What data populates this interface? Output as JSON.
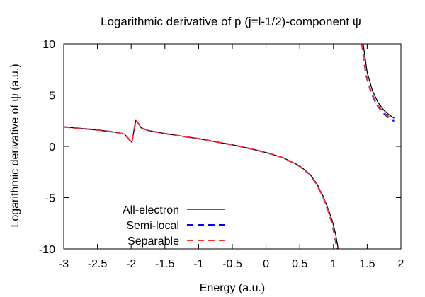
{
  "chart_data": {
    "type": "line",
    "title": "Logarithmic derivative of p (j=l-1/2)-component ψ",
    "xlabel": "Energy (a.u.)",
    "ylabel": "Logarithmic derivative of ψ (a.u.)",
    "xlim": [
      -3,
      2
    ],
    "ylim": [
      -10,
      10
    ],
    "xticks": [
      -3,
      -2.5,
      -2,
      -1.5,
      -1,
      -0.5,
      0,
      0.5,
      1,
      1.5,
      2
    ],
    "xtick_labels": [
      "-3",
      "-2.5",
      "-2",
      "-1.5",
      "-1",
      "-0.5",
      "0",
      "0.5",
      "1",
      "1.5",
      "2"
    ],
    "yticks": [
      -10,
      -5,
      0,
      5,
      10
    ],
    "ytick_labels": [
      "-10",
      "-5",
      "0",
      "5",
      "10"
    ],
    "grid": false,
    "legend_position": "bottom-left",
    "series": [
      {
        "name": "All-electron",
        "color": "#000000",
        "style": "solid",
        "segments": [
          [
            [
              -3,
              1.9
            ],
            [
              -2.75,
              1.75
            ],
            [
              -2.5,
              1.6
            ],
            [
              -2.25,
              1.4
            ],
            [
              -2.1,
              1.2
            ],
            [
              -2.02,
              0.6
            ],
            [
              -1.99,
              0.4
            ],
            [
              -1.93,
              2.6
            ],
            [
              -1.85,
              1.8
            ],
            [
              -1.75,
              1.55
            ],
            [
              -1.5,
              1.25
            ],
            [
              -1.25,
              1.0
            ],
            [
              -1.0,
              0.75
            ],
            [
              -0.75,
              0.45
            ],
            [
              -0.5,
              0.15
            ],
            [
              -0.25,
              -0.2
            ],
            [
              0.0,
              -0.6
            ],
            [
              0.25,
              -1.1
            ],
            [
              0.5,
              -1.9
            ],
            [
              0.65,
              -2.7
            ],
            [
              0.75,
              -3.6
            ],
            [
              0.85,
              -4.9
            ],
            [
              0.92,
              -6.1
            ],
            [
              0.98,
              -7.2
            ],
            [
              1.03,
              -8.5
            ],
            [
              1.07,
              -10
            ]
          ],
          [
            [
              1.44,
              10
            ],
            [
              1.5,
              7.2
            ],
            [
              1.58,
              5.4
            ],
            [
              1.66,
              4.3
            ],
            [
              1.75,
              3.5
            ],
            [
              1.82,
              3.1
            ],
            [
              1.9,
              2.75
            ]
          ]
        ]
      },
      {
        "name": "Semi-local",
        "color": "#0000ff",
        "style": "dashed",
        "segments": [
          [
            [
              -3,
              1.9
            ],
            [
              -2.75,
              1.75
            ],
            [
              -2.5,
              1.6
            ],
            [
              -2.25,
              1.4
            ],
            [
              -2.1,
              1.2
            ],
            [
              -2.02,
              0.6
            ],
            [
              -1.99,
              0.4
            ],
            [
              -1.93,
              2.6
            ],
            [
              -1.85,
              1.8
            ],
            [
              -1.75,
              1.55
            ],
            [
              -1.5,
              1.25
            ],
            [
              -1.25,
              1.0
            ],
            [
              -1.0,
              0.75
            ],
            [
              -0.75,
              0.45
            ],
            [
              -0.5,
              0.15
            ],
            [
              -0.25,
              -0.2
            ],
            [
              0.0,
              -0.6
            ],
            [
              0.25,
              -1.1
            ],
            [
              0.5,
              -1.95
            ],
            [
              0.65,
              -2.75
            ],
            [
              0.75,
              -3.7
            ],
            [
              0.85,
              -5.0
            ],
            [
              0.92,
              -6.3
            ],
            [
              0.98,
              -7.5
            ],
            [
              1.02,
              -8.8
            ],
            [
              1.05,
              -10
            ]
          ],
          [
            [
              1.42,
              10
            ],
            [
              1.48,
              7.0
            ],
            [
              1.56,
              5.2
            ],
            [
              1.64,
              4.1
            ],
            [
              1.73,
              3.3
            ],
            [
              1.81,
              2.85
            ],
            [
              1.9,
              2.45
            ]
          ]
        ]
      },
      {
        "name": "Separable",
        "color": "#ff3030",
        "style": "dashed",
        "segments": [
          [
            [
              -3,
              1.9
            ],
            [
              -2.75,
              1.75
            ],
            [
              -2.5,
              1.6
            ],
            [
              -2.25,
              1.4
            ],
            [
              -2.1,
              1.2
            ],
            [
              -2.02,
              0.6
            ],
            [
              -1.99,
              0.4
            ],
            [
              -1.93,
              2.6
            ],
            [
              -1.85,
              1.8
            ],
            [
              -1.75,
              1.55
            ],
            [
              -1.5,
              1.25
            ],
            [
              -1.25,
              1.0
            ],
            [
              -1.0,
              0.75
            ],
            [
              -0.75,
              0.45
            ],
            [
              -0.5,
              0.15
            ],
            [
              -0.25,
              -0.2
            ],
            [
              0.0,
              -0.6
            ],
            [
              0.25,
              -1.1
            ],
            [
              0.5,
              -1.95
            ],
            [
              0.65,
              -2.75
            ],
            [
              0.75,
              -3.7
            ],
            [
              0.85,
              -5.0
            ],
            [
              0.92,
              -6.3
            ],
            [
              0.98,
              -7.5
            ],
            [
              1.02,
              -8.8
            ],
            [
              1.05,
              -10
            ]
          ],
          [
            [
              1.42,
              10
            ],
            [
              1.48,
              7.1
            ],
            [
              1.56,
              5.3
            ],
            [
              1.64,
              4.2
            ],
            [
              1.73,
              3.4
            ],
            [
              1.81,
              2.95
            ],
            [
              1.9,
              2.55
            ]
          ]
        ]
      }
    ]
  }
}
